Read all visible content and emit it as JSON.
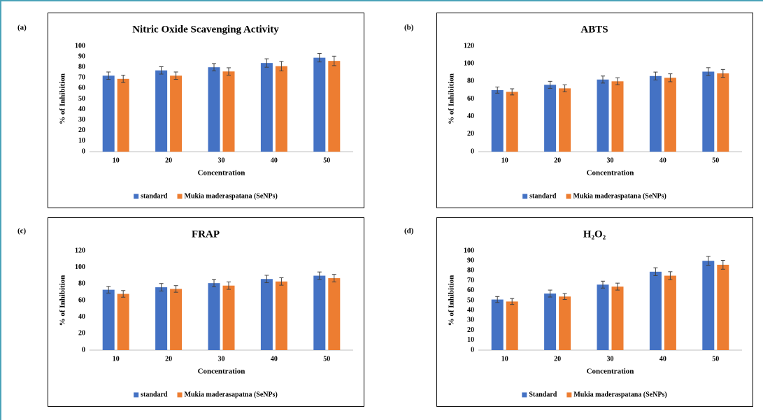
{
  "chart_data": [
    {
      "type": "bar",
      "label": "(a)",
      "title": "Nitric Oxide Scavenging Activity",
      "xlabel": "Concentration",
      "ylabel": "% of Inhibition",
      "categories": [
        "10",
        "20",
        "30",
        "40",
        "50"
      ],
      "series": [
        {
          "name": "standard",
          "color": "#4472c4",
          "values": [
            72,
            77,
            80,
            84,
            89
          ],
          "errors": [
            3.5,
            3.5,
            3.5,
            4,
            4
          ]
        },
        {
          "name": "Mukia maderaspatana (SeNPs)",
          "color": "#ed7d31",
          "values": [
            69,
            72,
            76,
            81,
            86
          ],
          "errors": [
            3.5,
            3.5,
            3.5,
            4.5,
            4.5
          ]
        }
      ],
      "ylim": [
        0,
        100
      ],
      "yticks": [
        0,
        10,
        20,
        30,
        40,
        50,
        60,
        70,
        80,
        90,
        100
      ],
      "grid": false,
      "legend": "bottom"
    },
    {
      "type": "bar",
      "label": "(b)",
      "title": "ABTS",
      "xlabel": "Concentration",
      "ylabel": "% of Inhibition",
      "categories": [
        "10",
        "20",
        "30",
        "40",
        "50"
      ],
      "series": [
        {
          "name": "standard",
          "color": "#4472c4",
          "values": [
            70,
            76,
            82,
            86,
            91
          ],
          "errors": [
            3.5,
            4,
            4,
            4.5,
            4.5
          ]
        },
        {
          "name": "Mukia maderaspatana (SeNPs)",
          "color": "#ed7d31",
          "values": [
            68,
            72,
            80,
            84,
            89
          ],
          "errors": [
            3.5,
            4,
            4,
            4.5,
            4.5
          ]
        }
      ],
      "ylim": [
        0,
        120
      ],
      "yticks": [
        0,
        20,
        40,
        60,
        80,
        100,
        120
      ],
      "grid": false,
      "legend": "bottom"
    },
    {
      "type": "bar",
      "label": "(c)",
      "title": "FRAP",
      "xlabel": "Concentration",
      "ylabel": "% of Inhibition",
      "categories": [
        "10",
        "20",
        "30",
        "40",
        "50"
      ],
      "series": [
        {
          "name": "standard",
          "color": "#4472c4",
          "values": [
            73,
            76,
            81,
            86,
            90
          ],
          "errors": [
            4,
            4.5,
            4.5,
            4.5,
            4.5
          ]
        },
        {
          "name": "Mukia maderasapatna (SeNPs)",
          "color": "#ed7d31",
          "values": [
            68,
            74,
            78,
            83,
            87
          ],
          "errors": [
            4,
            4,
            4.5,
            4.5,
            4.5
          ]
        }
      ],
      "ylim": [
        0,
        120
      ],
      "yticks": [
        0,
        20,
        40,
        60,
        80,
        100,
        120
      ],
      "grid": false,
      "legend": "bottom"
    },
    {
      "type": "bar",
      "label": "(d)",
      "title": "H₂O₂",
      "xlabel": "Concentration",
      "ylabel": "% of Inhibition",
      "categories": [
        "10",
        "20",
        "30",
        "40",
        "50"
      ],
      "series": [
        {
          "name": "Standard",
          "color": "#4472c4",
          "values": [
            51,
            57,
            66,
            79,
            90
          ],
          "errors": [
            3,
            3.5,
            3.5,
            4,
            4.5
          ]
        },
        {
          "name": "Mukia maderaspatana (SeNPs)",
          "color": "#ed7d31",
          "values": [
            49,
            54,
            64,
            75,
            86
          ],
          "errors": [
            3,
            3,
            3.5,
            4,
            4.5
          ]
        }
      ],
      "ylim": [
        0,
        100
      ],
      "yticks": [
        0,
        10,
        20,
        30,
        40,
        50,
        60,
        70,
        80,
        90,
        100
      ],
      "grid": false,
      "legend": "bottom"
    }
  ]
}
